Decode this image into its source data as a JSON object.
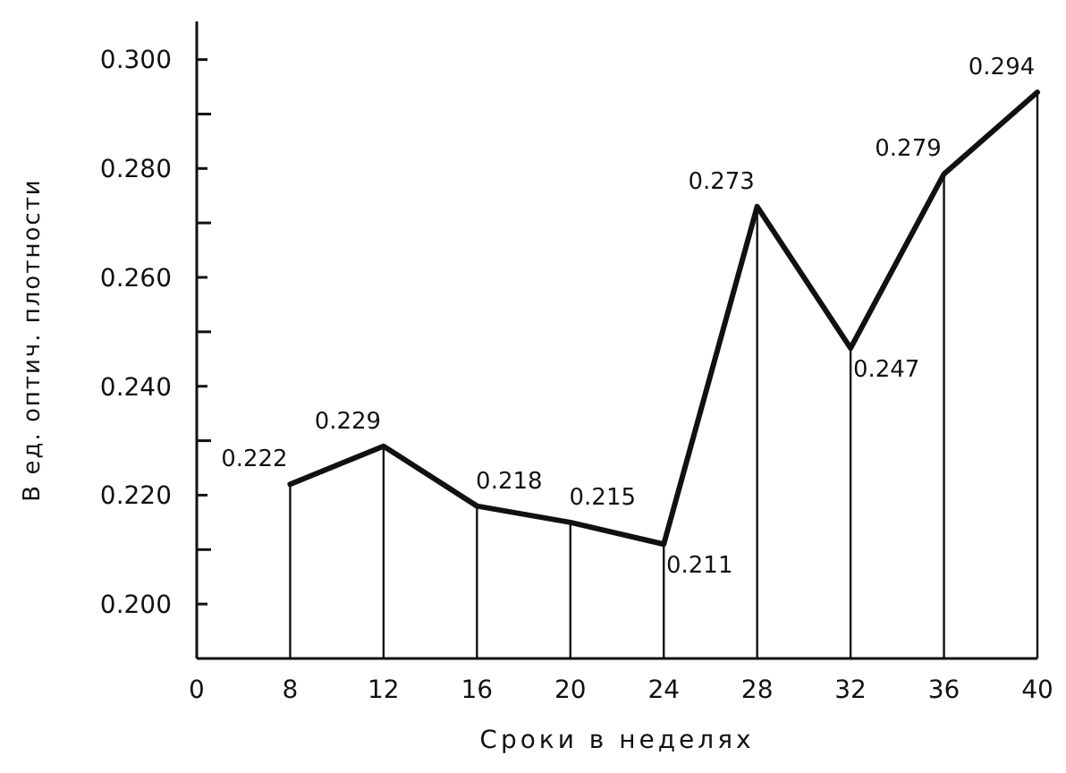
{
  "chart_data": {
    "type": "line",
    "xlabel": "Сроки в неделях",
    "ylabel": "В ед. оптич. плотности",
    "categories": [
      "0",
      "8",
      "12",
      "16",
      "20",
      "24",
      "28",
      "32",
      "36",
      "40"
    ],
    "values": [
      null,
      0.222,
      0.229,
      0.218,
      0.215,
      0.211,
      0.273,
      0.247,
      0.279,
      0.294
    ],
    "color": "#111111",
    "marker": "none",
    "data_labels": true,
    "ylim": [
      0.19,
      0.307
    ],
    "yticks": [
      {
        "value": 0.2,
        "label": "0.200"
      },
      {
        "value": 0.21,
        "label": null
      },
      {
        "value": 0.22,
        "label": "0.220"
      },
      {
        "value": 0.23,
        "label": null
      },
      {
        "value": 0.24,
        "label": "0.240"
      },
      {
        "value": 0.25,
        "label": null
      },
      {
        "value": 0.26,
        "label": "0.260"
      },
      {
        "value": 0.27,
        "label": null
      },
      {
        "value": 0.28,
        "label": "0.280"
      },
      {
        "value": 0.29,
        "label": null
      },
      {
        "value": 0.3,
        "label": "0.300"
      }
    ],
    "grid": "x"
  }
}
